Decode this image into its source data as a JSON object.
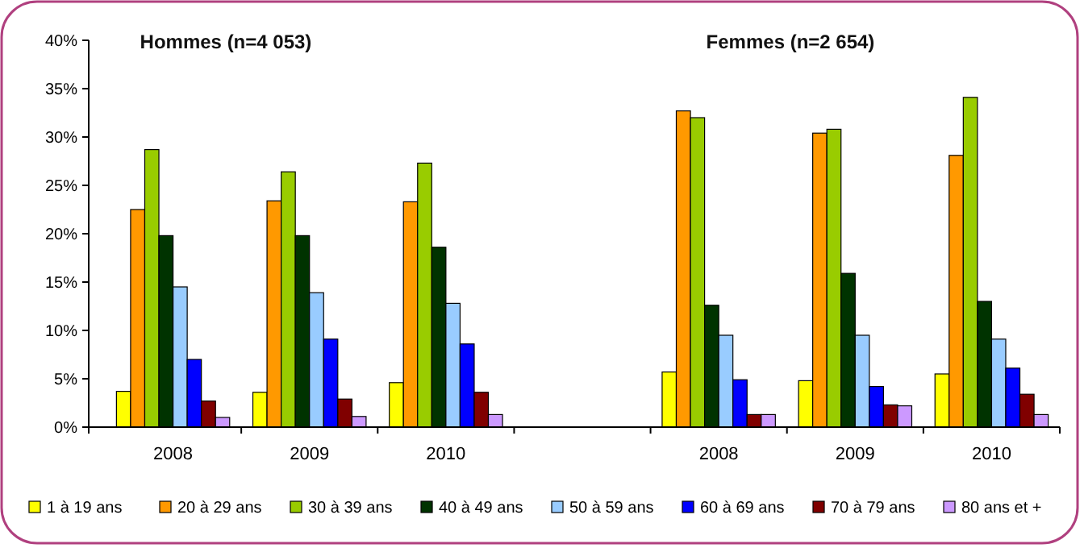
{
  "chart_data": {
    "type": "bar",
    "categories": [
      "2008",
      "2009",
      "2010",
      null,
      "2008",
      "2009",
      "2010"
    ],
    "annotations": [
      "Hommes (n=4 053)",
      "Femmes (n=2 654)"
    ],
    "ylim": [
      0,
      40
    ],
    "yticks": [
      {
        "value": 0,
        "label": "0%"
      },
      {
        "value": 5,
        "label": "5%"
      },
      {
        "value": 10,
        "label": "10%"
      },
      {
        "value": 15,
        "label": "15%"
      },
      {
        "value": 20,
        "label": "20%"
      },
      {
        "value": 25,
        "label": "25%"
      },
      {
        "value": 30,
        "label": "30%"
      },
      {
        "value": 35,
        "label": "35%"
      },
      {
        "value": 40,
        "label": "40%"
      }
    ],
    "legend": "bottom",
    "grid": false,
    "series": [
      {
        "name": "1 à 19 ans",
        "color": "#ffff00",
        "values": [
          3.7,
          3.6,
          4.6,
          null,
          5.7,
          4.8,
          5.5
        ]
      },
      {
        "name": "20 à 29 ans",
        "color": "#ff9900",
        "values": [
          22.5,
          23.4,
          23.3,
          null,
          32.7,
          30.4,
          28.1
        ]
      },
      {
        "name": "30 à 39 ans",
        "color": "#99cc00",
        "values": [
          28.7,
          26.4,
          27.3,
          null,
          32.0,
          30.8,
          34.1
        ]
      },
      {
        "name": "40 à 49 ans",
        "color": "#003300",
        "values": [
          19.8,
          19.8,
          18.6,
          null,
          12.6,
          15.9,
          13.0
        ]
      },
      {
        "name": "50 à 59 ans",
        "color": "#99ccff",
        "values": [
          14.5,
          13.9,
          12.8,
          null,
          9.5,
          9.5,
          9.1
        ]
      },
      {
        "name": "60 à 69 ans",
        "color": "#0000ff",
        "values": [
          7.0,
          9.1,
          8.6,
          null,
          4.9,
          4.2,
          6.1
        ]
      },
      {
        "name": "70 à 79 ans",
        "color": "#800000",
        "values": [
          2.7,
          2.9,
          3.6,
          null,
          1.3,
          2.3,
          3.4
        ]
      },
      {
        "name": "80 ans et +",
        "color": "#cc99ff",
        "values": [
          1.0,
          1.1,
          1.3,
          null,
          1.3,
          2.2,
          1.3
        ]
      }
    ]
  }
}
